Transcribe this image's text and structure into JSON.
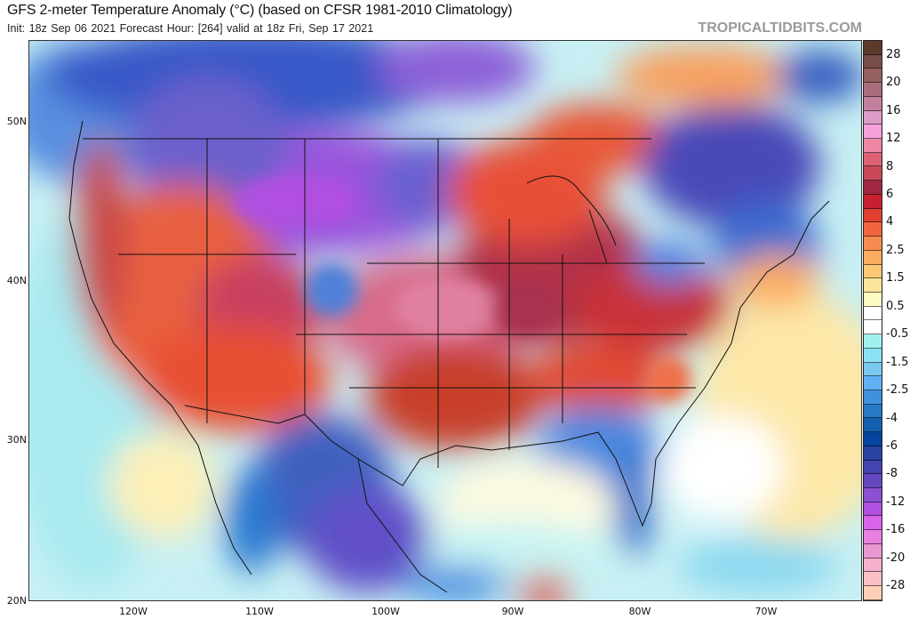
{
  "header": {
    "title": "GFS 2-meter Temperature Anomaly (°C) (based on CFSR 1981-2010 Climatology)",
    "subtitle": "Init: 18z Sep 06 2021   Forecast Hour: [264]   valid at 18z Fri, Sep 17 2021",
    "brand": "TROPICALTIDBITS.COM"
  },
  "map": {
    "lat_labels": [
      "50N",
      "40N",
      "30N",
      "20N"
    ],
    "lon_labels": [
      "120W",
      "110W",
      "100W",
      "90W",
      "80W",
      "70W"
    ]
  },
  "colorbar": {
    "labels": [
      "28",
      "20",
      "16",
      "12",
      "8",
      "6",
      "4",
      "2.5",
      "1.5",
      "0.5",
      "-0.5",
      "-1.5",
      "-2.5",
      "-4",
      "-6",
      "-8",
      "-12",
      "-16",
      "-20",
      "-28"
    ],
    "colors": [
      "#5c3a2c",
      "#7a4e48",
      "#966060",
      "#a86e7c",
      "#c2809c",
      "#dc9cc8",
      "#f8a0dc",
      "#ee86a4",
      "#de6274",
      "#c84858",
      "#a02840",
      "#c82030",
      "#e04030",
      "#f06440",
      "#f88c50",
      "#fcac60",
      "#fcc878",
      "#fde49c",
      "#fefac4",
      "#ffffff",
      "#ffffff",
      "#a0f0f0",
      "#8ce0f4",
      "#78c8f0",
      "#60b0f4",
      "#4090e0",
      "#2878c8",
      "#1460b0",
      "#04449c",
      "#2844a0",
      "#4444b0",
      "#6448c0",
      "#8c50d4",
      "#b050e0",
      "#d864ec",
      "#e880e0",
      "#ec98d0",
      "#f4b0cc",
      "#f8c0c4",
      "#fcd0b8"
    ]
  }
}
